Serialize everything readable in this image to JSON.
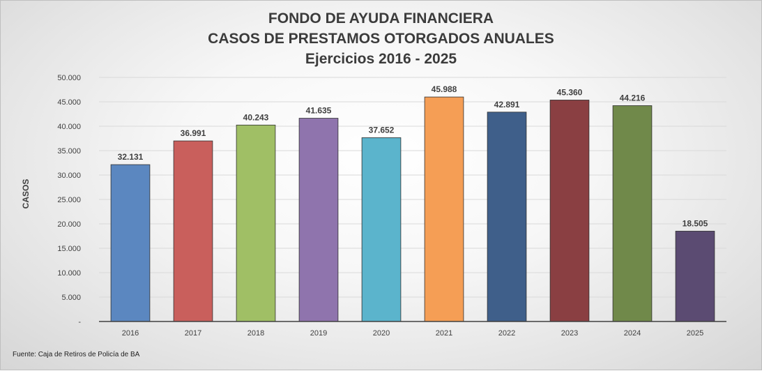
{
  "chart_data": {
    "type": "bar",
    "title": [
      "FONDO DE AYUDA FINANCIERA",
      "CASOS DE PRESTAMOS OTORGADOS ANUALES",
      "Ejercicios 2016 - 2025"
    ],
    "ylabel": "CASOS",
    "xlabel": "",
    "categories": [
      "2016",
      "2017",
      "2018",
      "2019",
      "2020",
      "2021",
      "2022",
      "2023",
      "2024",
      "2025"
    ],
    "values": [
      32131,
      36991,
      40243,
      41635,
      37652,
      45988,
      42891,
      45360,
      44216,
      18505
    ],
    "value_labels": [
      "32.131",
      "36.991",
      "40.243",
      "41.635",
      "37.652",
      "45.988",
      "42.891",
      "45.360",
      "44.216",
      "18.505"
    ],
    "colors": [
      "#5b87c0",
      "#c95f5c",
      "#a0bf65",
      "#8f74ad",
      "#5bb4cc",
      "#f59e55",
      "#3f5f8a",
      "#8a3f42",
      "#70894a",
      "#5b4b72"
    ],
    "ylim": [
      0,
      50000
    ],
    "yticks": [
      0,
      5000,
      10000,
      15000,
      20000,
      25000,
      30000,
      35000,
      40000,
      45000,
      50000
    ],
    "ytick_labels": [
      "-",
      "5.000",
      "10.000",
      "15.000",
      "20.000",
      "25.000",
      "30.000",
      "35.000",
      "40.000",
      "45.000",
      "50.000"
    ],
    "grid": true,
    "legend": "none"
  },
  "footer": {
    "source": "Fuente: Caja de Retiros de Policía de BA"
  }
}
